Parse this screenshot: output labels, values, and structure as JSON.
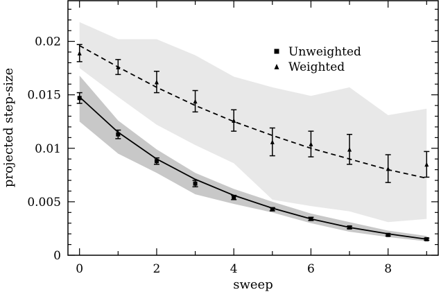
{
  "chart_data": {
    "type": "line",
    "xlabel": "sweep",
    "ylabel": "projected step-size",
    "xlim": [
      -0.3,
      9.3
    ],
    "ylim": [
      0,
      0.0238
    ],
    "x_ticks": [
      0,
      2,
      4,
      6,
      8
    ],
    "x_tick_labels": [
      "0",
      "2",
      "4",
      "6",
      "8"
    ],
    "y_ticks": [
      0,
      0.005,
      0.01,
      0.015,
      0.02
    ],
    "y_tick_labels": [
      "0",
      "0.005",
      "0.01",
      "0.015",
      "0.02"
    ],
    "legend_position": "top-right",
    "series": [
      {
        "name": "Unweighted",
        "marker": "square",
        "fit_line": "solid",
        "band_color": "#c8c8c8",
        "x": [
          0,
          1,
          2,
          3,
          4,
          5,
          6,
          7,
          8,
          9
        ],
        "y": [
          0.0147,
          0.0113,
          0.0088,
          0.0067,
          0.0054,
          0.0043,
          0.0034,
          0.0026,
          0.0019,
          0.0015
        ],
        "y_err": [
          0.0005,
          0.0004,
          0.0003,
          0.0003,
          0.0002,
          0.00015,
          0.00015,
          0.00012,
          0.0001,
          0.0001
        ],
        "fit_y": [
          0.0148,
          0.0115,
          0.009,
          0.0071,
          0.0056,
          0.0044,
          0.0034,
          0.0026,
          0.002,
          0.0015
        ],
        "band_lower": [
          0.0125,
          0.0095,
          0.0077,
          0.0057,
          0.0048,
          0.004,
          0.003,
          0.0022,
          0.0017,
          0.0013
        ],
        "band_upper": [
          0.0168,
          0.0126,
          0.0099,
          0.0077,
          0.0062,
          0.005,
          0.0039,
          0.0031,
          0.0023,
          0.0018
        ]
      },
      {
        "name": "Weighted",
        "marker": "triangle",
        "fit_line": "dashed",
        "band_color": "#e8e8e8",
        "x": [
          0,
          1,
          2,
          3,
          4,
          5,
          6,
          7,
          8,
          9
        ],
        "y": [
          0.0189,
          0.0176,
          0.0162,
          0.0144,
          0.0126,
          0.0106,
          0.0104,
          0.0099,
          0.0081,
          0.0085
        ],
        "y_err": [
          0.0008,
          0.0007,
          0.001,
          0.001,
          0.001,
          0.0013,
          0.0012,
          0.0014,
          0.0013,
          0.0012
        ],
        "fit_y": [
          0.0196,
          0.0176,
          0.0157,
          0.014,
          0.0125,
          0.0112,
          0.01,
          0.009,
          0.008,
          0.0072
        ],
        "band_lower": [
          0.0175,
          0.0148,
          0.0122,
          0.0103,
          0.0086,
          0.0052,
          0.0046,
          0.0041,
          0.0031,
          0.0034
        ],
        "band_upper": [
          0.0218,
          0.0202,
          0.0202,
          0.0187,
          0.0167,
          0.0157,
          0.0149,
          0.0157,
          0.0131,
          0.0137
        ]
      }
    ]
  }
}
